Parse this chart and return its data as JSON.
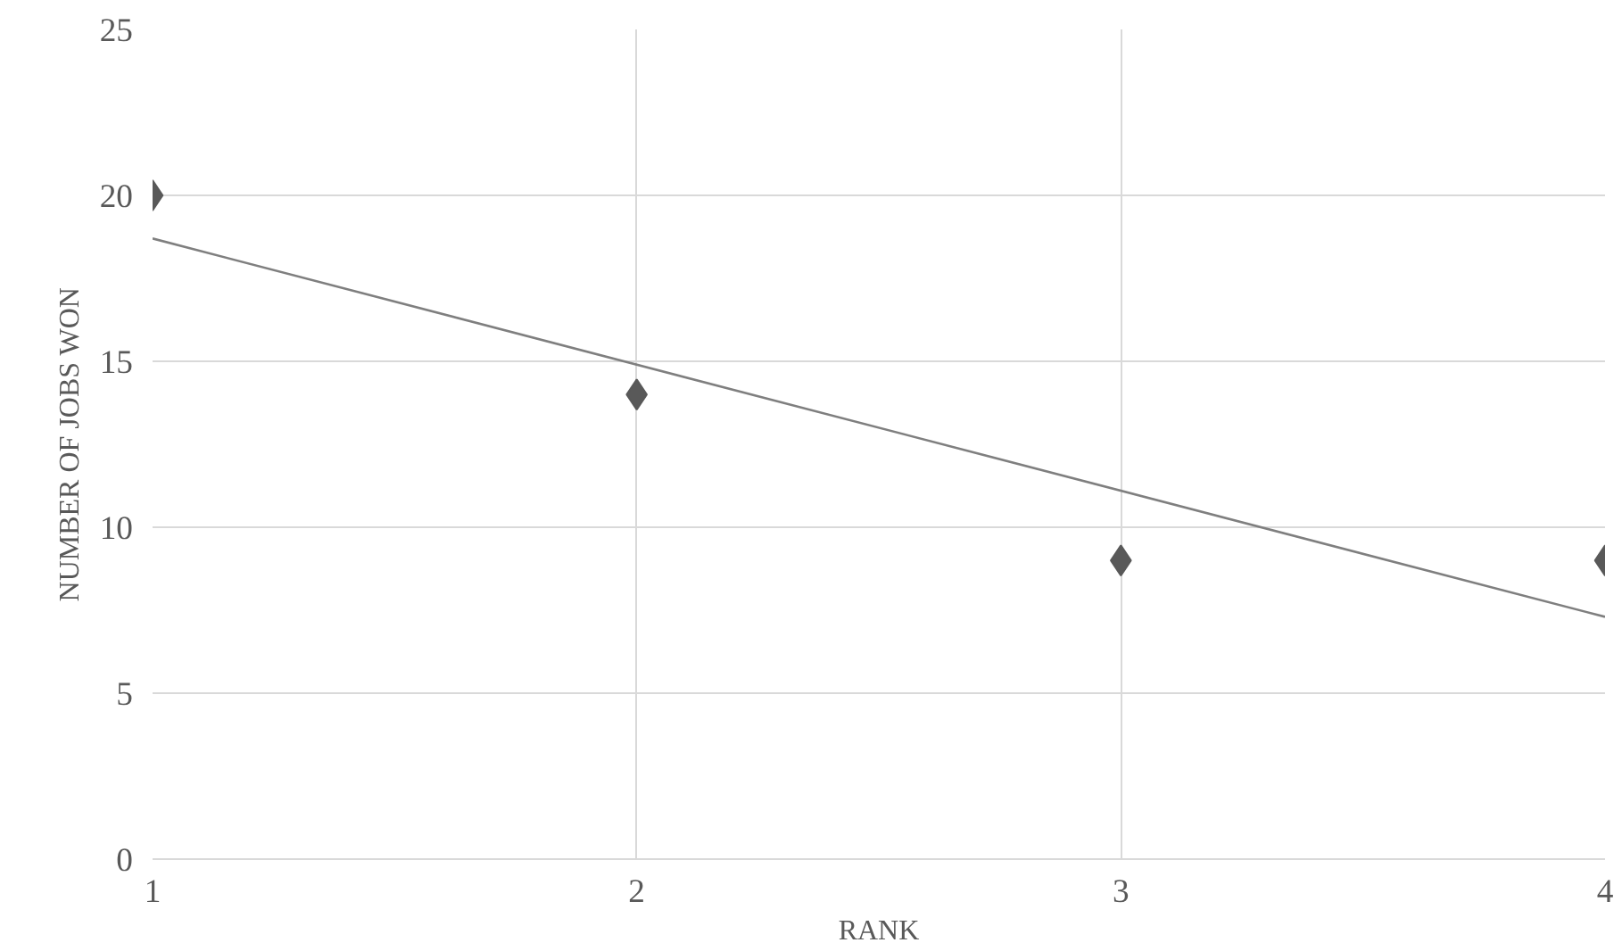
{
  "chart_data": {
    "type": "scatter",
    "xlabel": "RANK",
    "ylabel": "NUMBER OF JOBS WON",
    "xlim": [
      1,
      4
    ],
    "ylim": [
      0,
      25
    ],
    "xticks": [
      1,
      2,
      3,
      4
    ],
    "yticks": [
      0,
      5,
      10,
      15,
      20,
      25
    ],
    "grid": true,
    "marker": "diamond",
    "series": [
      {
        "color": "#595959",
        "x": [
          1,
          2,
          3,
          4
        ],
        "values": [
          20,
          14,
          9,
          9
        ]
      },
      {
        "type": "line",
        "marker": "none",
        "color": "#7f7f7f",
        "x": [
          1,
          4
        ],
        "values": [
          18.7,
          7.3
        ]
      }
    ]
  }
}
